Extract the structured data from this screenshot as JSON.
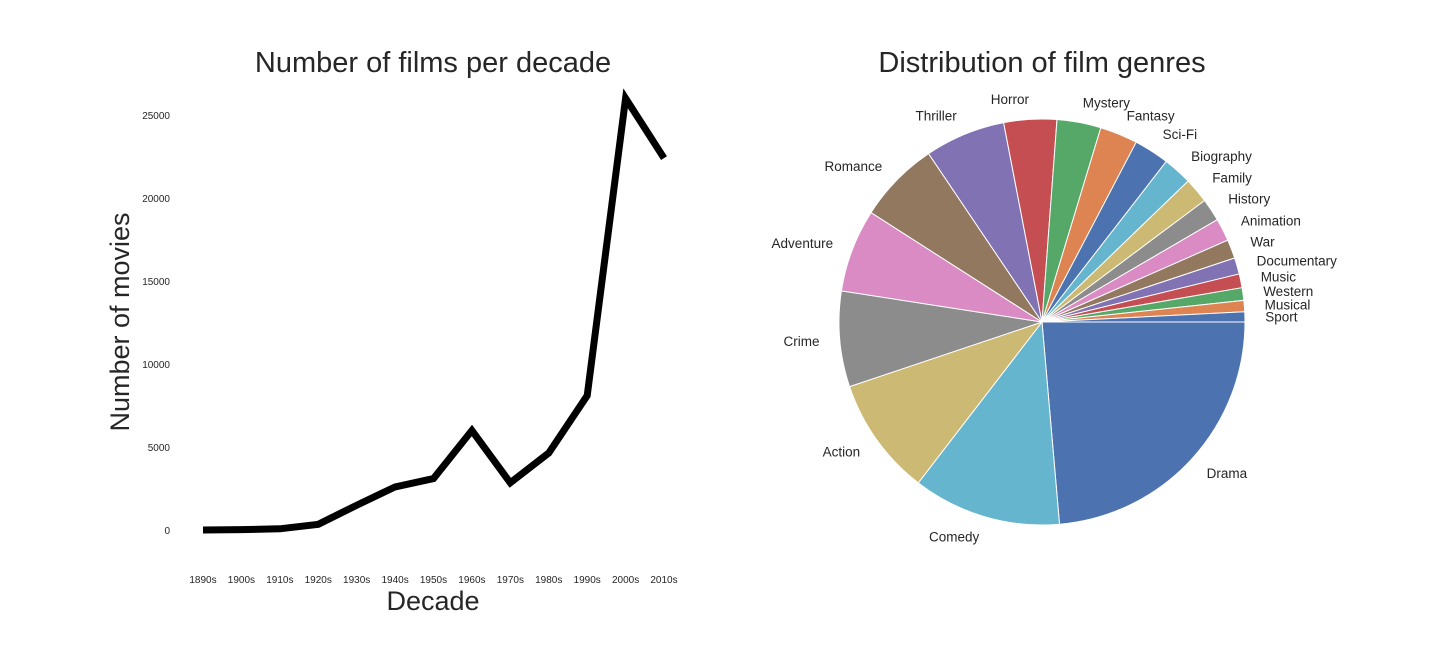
{
  "chart_data": [
    {
      "type": "line",
      "title": "Number of films per decade",
      "xlabel": "Decade",
      "ylabel": "Number of movies",
      "categories": [
        "1890s",
        "1900s",
        "1910s",
        "1920s",
        "1930s",
        "1940s",
        "1950s",
        "1960s",
        "1970s",
        "1980s",
        "1990s",
        "2000s",
        "2010s"
      ],
      "series": [
        {
          "values": [
            5,
            30,
            80,
            350,
            1500,
            2600,
            3100,
            6000,
            2850,
            4650,
            8100,
            26000,
            22400
          ],
          "color": "#000000"
        }
      ],
      "yticks": [
        0,
        5000,
        10000,
        15000,
        20000,
        25000
      ],
      "ytick_labels": [
        "0",
        "5000",
        "10000",
        "15000",
        "20000",
        "25000"
      ],
      "ylim": [
        -1800,
        26500
      ],
      "grid": false
    },
    {
      "type": "pie",
      "title": "Distribution of film genres",
      "slices": [
        {
          "label": "Drama",
          "value": 23.6,
          "color": "#4c72b0"
        },
        {
          "label": "Comedy",
          "value": 11.8,
          "color": "#64b5cd"
        },
        {
          "label": "Action",
          "value": 9.4,
          "color": "#ccb974"
        },
        {
          "label": "Crime",
          "value": 7.6,
          "color": "#8c8c8c"
        },
        {
          "label": "Adventure",
          "value": 6.6,
          "color": "#da8bc3"
        },
        {
          "label": "Romance",
          "value": 6.5,
          "color": "#937860"
        },
        {
          "label": "Thriller",
          "value": 6.4,
          "color": "#8172b3"
        },
        {
          "label": "Horror",
          "value": 4.2,
          "color": "#c44e52"
        },
        {
          "label": "Mystery",
          "value": 3.5,
          "color": "#55a868"
        },
        {
          "label": "Fantasy",
          "value": 3.0,
          "color": "#dd8452"
        },
        {
          "label": "Sci-Fi",
          "value": 2.8,
          "color": "#4c72b0"
        },
        {
          "label": "Biography",
          "value": 2.3,
          "color": "#64b5cd"
        },
        {
          "label": "Family",
          "value": 2.0,
          "color": "#ccb974"
        },
        {
          "label": "History",
          "value": 1.8,
          "color": "#8c8c8c"
        },
        {
          "label": "Animation",
          "value": 1.8,
          "color": "#da8bc3"
        },
        {
          "label": "War",
          "value": 1.5,
          "color": "#937860"
        },
        {
          "label": "Documentary",
          "value": 1.3,
          "color": "#8172b3"
        },
        {
          "label": "Music",
          "value": 1.1,
          "color": "#c44e52"
        },
        {
          "label": "Western",
          "value": 1.0,
          "color": "#55a868"
        },
        {
          "label": "Musical",
          "value": 0.9,
          "color": "#dd8452"
        },
        {
          "label": "Sport",
          "value": 0.8,
          "color": "#4c72b0"
        }
      ],
      "start_angle_deg": 0,
      "direction": "clockwise",
      "edge_color": "#ffffff"
    }
  ]
}
